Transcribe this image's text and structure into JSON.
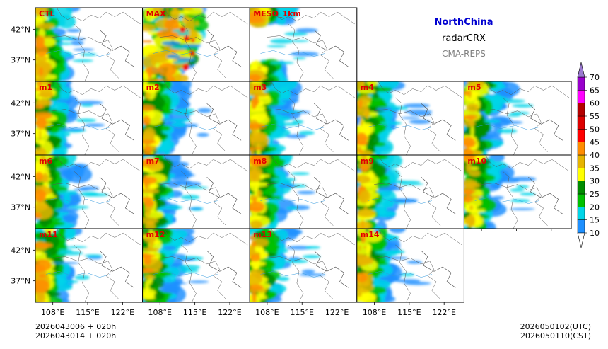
{
  "chart_data": {
    "type": "heatmap",
    "title": "NorthChina",
    "variable": "radarCRX",
    "source": "CMA-REPS",
    "panels": [
      "CTL",
      "MAX",
      "MESO_1km",
      "m1",
      "m2",
      "m3",
      "m4",
      "m5",
      "m6",
      "m7",
      "m8",
      "m9",
      "m10",
      "m11",
      "m12",
      "m13",
      "m14"
    ],
    "x_tick_labels": [
      "108°E",
      "115°E",
      "122°E"
    ],
    "x_ticks_deg": [
      108,
      115,
      122
    ],
    "y_tick_labels": [
      "42°N",
      "37°N"
    ],
    "y_ticks_deg": [
      42,
      37
    ],
    "lon_range": [
      104.5,
      126
    ],
    "lat_range": [
      33.5,
      45.5
    ],
    "colorbar": {
      "levels": [
        10,
        15,
        20,
        25,
        30,
        35,
        40,
        45,
        50,
        55,
        60,
        65,
        70
      ],
      "level_labels": [
        "10",
        "15",
        "20",
        "25",
        "30",
        "35",
        "40",
        "45",
        "50",
        "55",
        "60",
        "65",
        "70"
      ],
      "colors": [
        "#1e90ff",
        "#00d5e8",
        "#00c000",
        "#008c00",
        "#ffff00",
        "#e6b400",
        "#ff8c00",
        "#ff0000",
        "#dd0000",
        "#b40000",
        "#ff00ff",
        "#9900cc"
      ],
      "under_color": "#ffffff",
      "over_color": "#9a78d0",
      "extend": "both"
    },
    "init_time_1": "2026043006  +  020h",
    "init_time_2": "2026043014  +  020h",
    "valid_utc": "2026050102(UTC)",
    "valid_cst": "2026050110(CST)"
  }
}
